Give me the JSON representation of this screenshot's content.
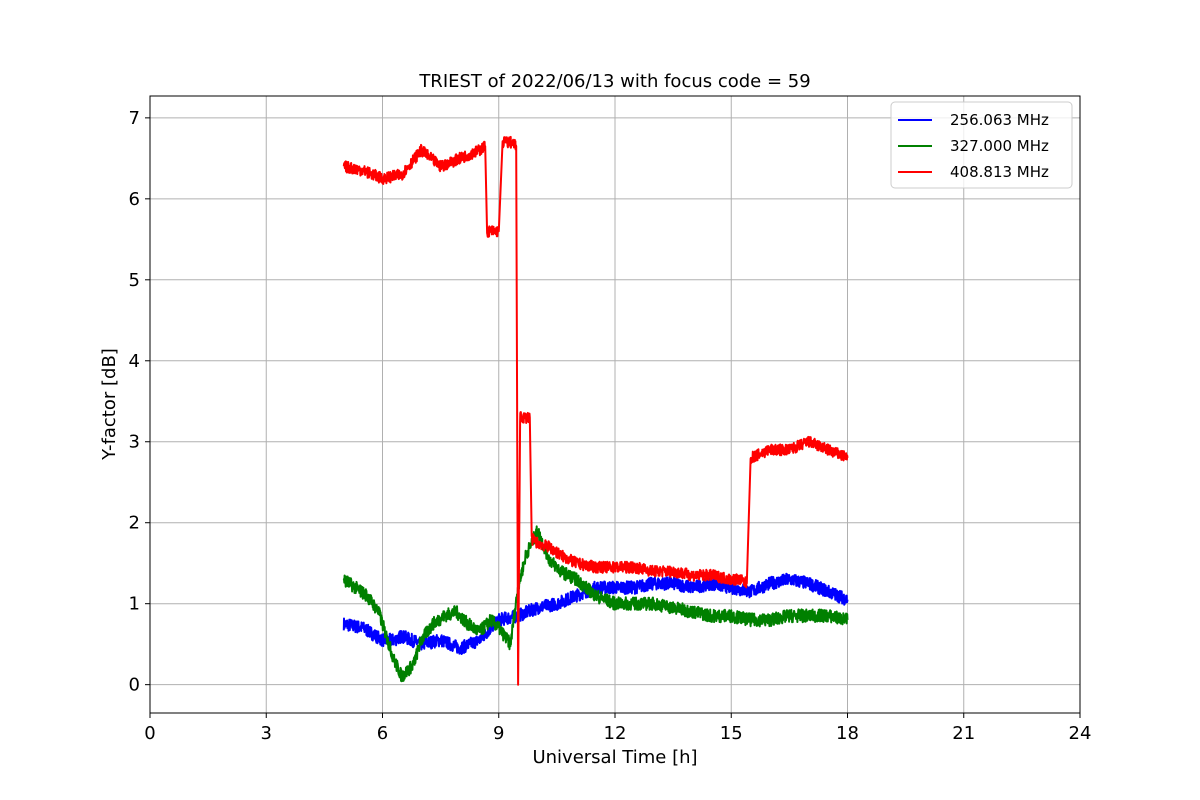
{
  "chart_data": {
    "type": "line",
    "title": "TRIEST of 2022/06/13 with focus code = 59",
    "xlabel": "Universal Time [h]",
    "ylabel": "Y-factor [dB]",
    "xlim": [
      0,
      24
    ],
    "ylim": [
      -0.35,
      7.27
    ],
    "xticks": [
      0,
      3,
      6,
      9,
      12,
      15,
      18,
      21,
      24
    ],
    "yticks": [
      0,
      1,
      2,
      3,
      4,
      5,
      6,
      7
    ],
    "grid": true,
    "legend_position": "top-right",
    "series": [
      {
        "name": "256.063 MHz",
        "color": "#0000ff",
        "x": [
          5.0,
          5.5,
          6.0,
          6.3,
          6.5,
          7.0,
          7.5,
          8.0,
          8.5,
          9.0,
          9.5,
          10.0,
          10.5,
          11.0,
          11.5,
          12.0,
          12.5,
          13.0,
          13.5,
          14.0,
          14.5,
          15.0,
          15.5,
          16.0,
          16.5,
          17.0,
          17.5,
          18.0
        ],
        "y": [
          0.75,
          0.7,
          0.55,
          0.55,
          0.6,
          0.5,
          0.55,
          0.45,
          0.55,
          0.8,
          0.85,
          0.95,
          1.0,
          1.1,
          1.2,
          1.2,
          1.2,
          1.25,
          1.25,
          1.2,
          1.25,
          1.2,
          1.15,
          1.25,
          1.3,
          1.25,
          1.15,
          1.05
        ],
        "noise": 0.08
      },
      {
        "name": "327.000 MHz",
        "color": "#008000",
        "x": [
          5.0,
          5.3,
          5.6,
          5.9,
          6.1,
          6.3,
          6.5,
          6.8,
          7.0,
          7.3,
          7.6,
          7.9,
          8.2,
          8.5,
          8.8,
          9.0,
          9.3,
          9.5,
          9.7,
          10.0,
          10.3,
          10.6,
          11.0,
          11.5,
          12.0,
          12.5,
          13.0,
          13.5,
          14.0,
          14.5,
          15.0,
          15.5,
          16.0,
          16.5,
          17.0,
          17.5,
          18.0
        ],
        "y": [
          1.3,
          1.2,
          1.1,
          0.9,
          0.6,
          0.3,
          0.1,
          0.25,
          0.55,
          0.75,
          0.85,
          0.9,
          0.75,
          0.65,
          0.8,
          0.7,
          0.5,
          1.2,
          1.6,
          1.9,
          1.55,
          1.4,
          1.3,
          1.1,
          1.0,
          1.0,
          1.0,
          0.95,
          0.9,
          0.85,
          0.85,
          0.8,
          0.8,
          0.85,
          0.85,
          0.85,
          0.8
        ],
        "noise": 0.08
      },
      {
        "name": "408.813 MHz",
        "color": "#ff0000",
        "x": [
          5.0,
          5.5,
          6.0,
          6.5,
          7.0,
          7.5,
          8.0,
          8.5,
          8.65,
          8.7,
          9.0,
          9.1,
          9.3,
          9.45,
          9.5,
          9.55,
          9.8,
          9.85,
          10.0,
          10.3,
          10.6,
          11.0,
          11.5,
          12.0,
          12.5,
          13.0,
          13.5,
          14.0,
          14.5,
          15.0,
          15.2,
          15.4,
          15.5,
          16.0,
          16.5,
          17.0,
          17.5,
          18.0
        ],
        "y": [
          6.4,
          6.35,
          6.25,
          6.3,
          6.6,
          6.4,
          6.5,
          6.6,
          6.65,
          5.6,
          5.6,
          6.7,
          6.7,
          6.65,
          0.0,
          3.3,
          3.3,
          1.8,
          1.75,
          1.7,
          1.6,
          1.5,
          1.45,
          1.45,
          1.45,
          1.4,
          1.4,
          1.35,
          1.35,
          1.3,
          1.3,
          1.25,
          2.8,
          2.9,
          2.9,
          3.0,
          2.9,
          2.8
        ],
        "noise": 0.07
      }
    ]
  }
}
